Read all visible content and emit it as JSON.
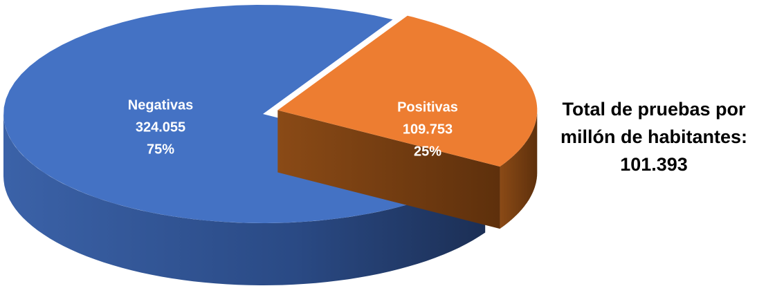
{
  "chart_data": {
    "type": "pie",
    "categories": [
      "Negativas",
      "Positivas"
    ],
    "values": [
      324055,
      109753
    ],
    "value_labels": [
      "324.055",
      "109.753"
    ],
    "percents": [
      75,
      25
    ],
    "percent_labels": [
      "75%",
      "25%"
    ],
    "colors": [
      "#4472c4",
      "#ed7d31"
    ],
    "annotation": {
      "lines": [
        "Total de pruebas por",
        "millón de habitantes:"
      ],
      "value": 101393,
      "value_label": "101.393"
    }
  }
}
